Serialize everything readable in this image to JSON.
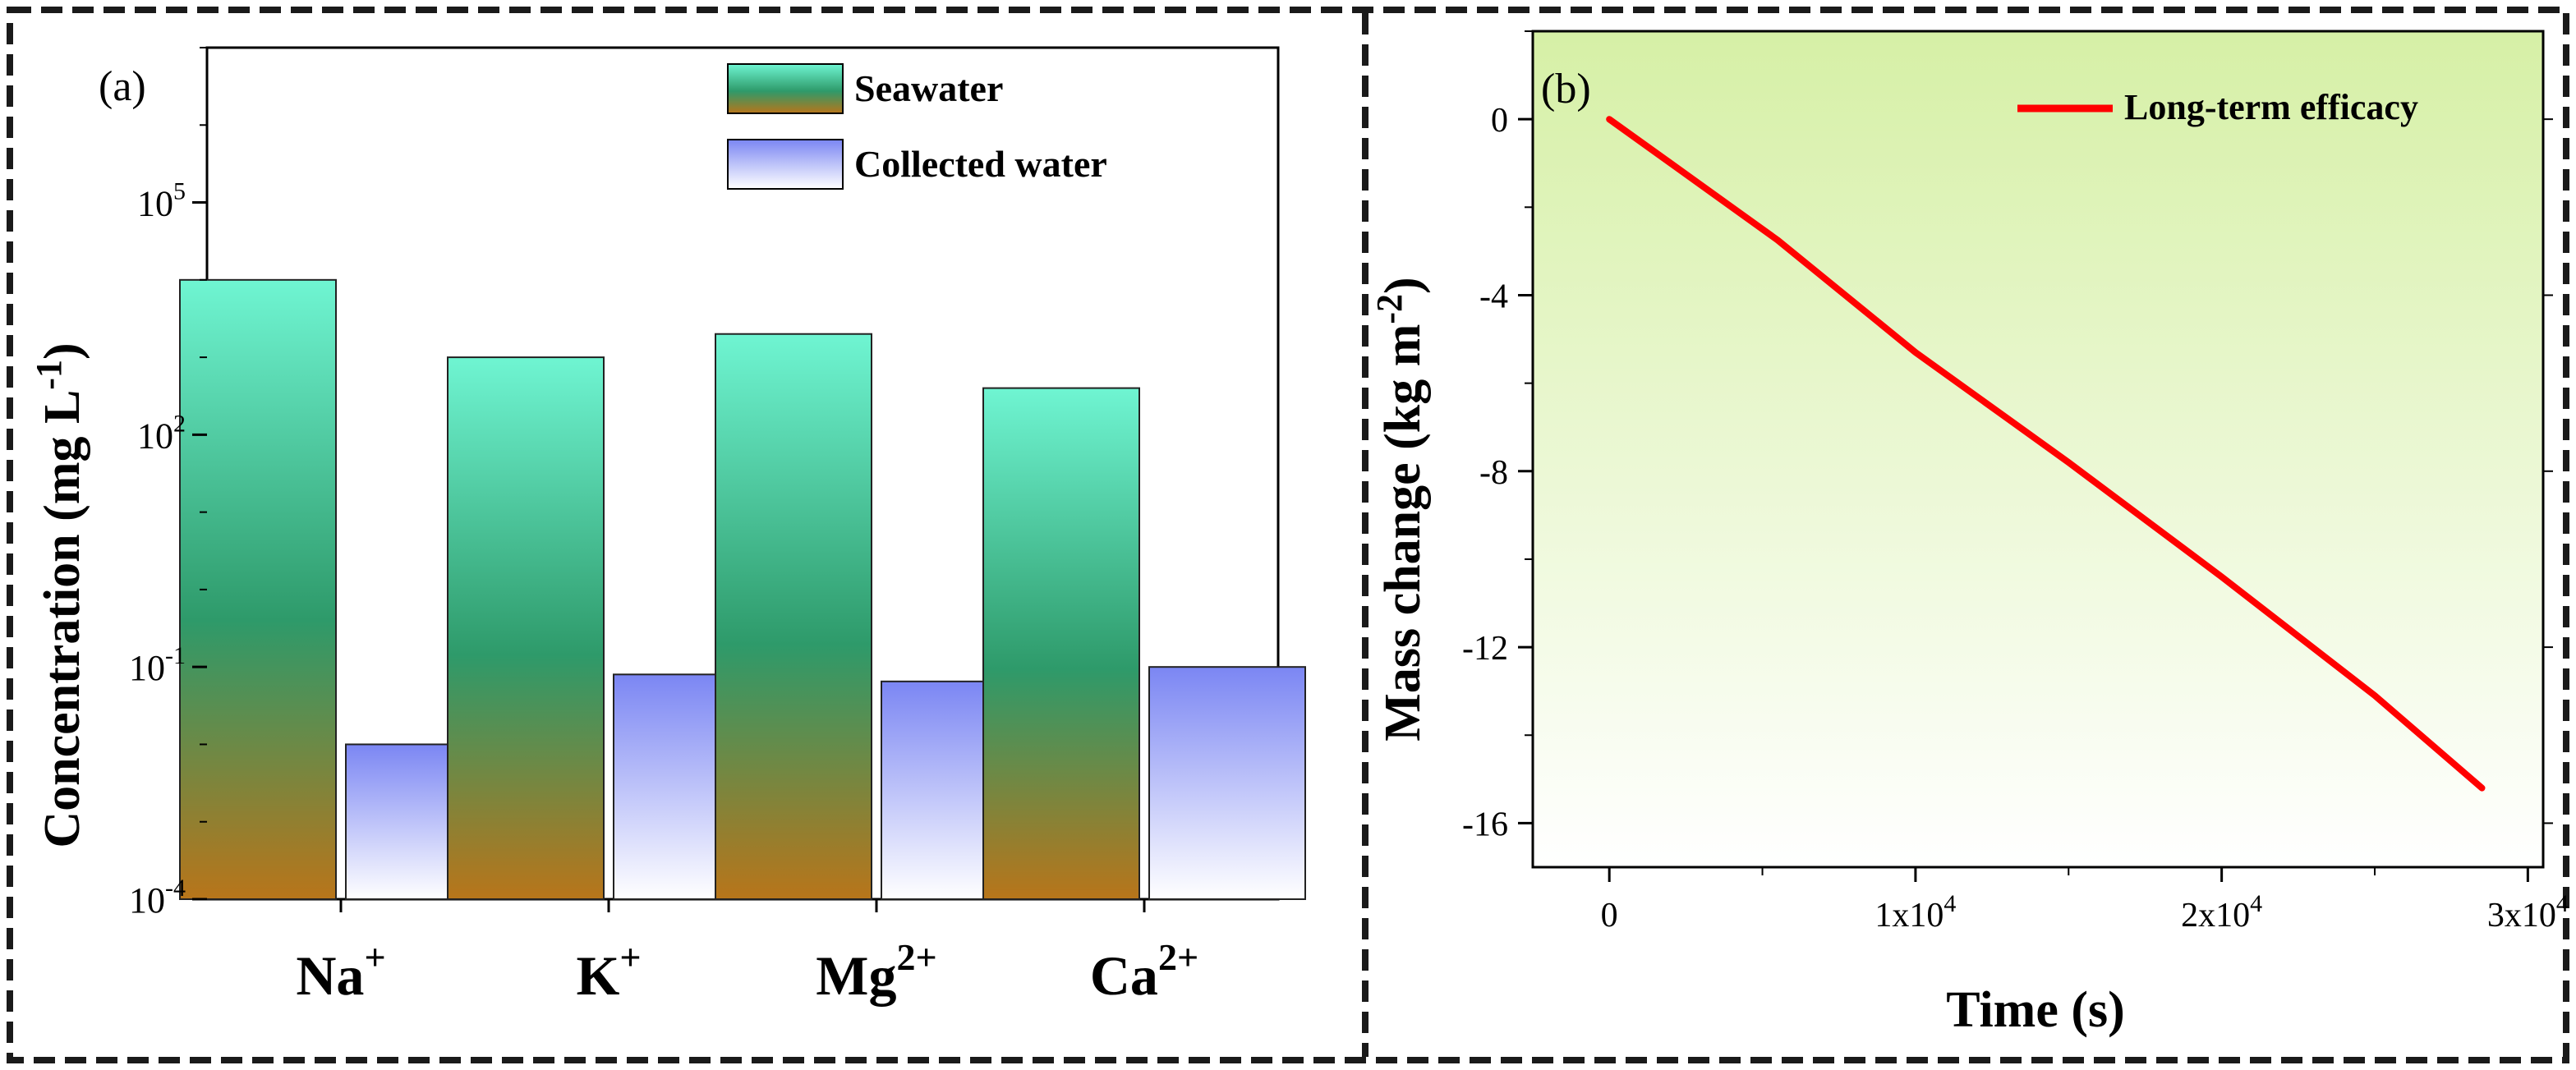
{
  "figure": {
    "panel_a_label": "(a)",
    "panel_b_label": "(b)"
  },
  "colors": {
    "seawater_top": "#6ff5d2",
    "seawater_mid": "#2e9a6a",
    "seawater_bottom": "#b8751a",
    "collected_top": "#7b86f3",
    "collected_bottom": "#ffffff",
    "line": "#ff0000",
    "bg_b_top": "#d6f0a6",
    "bg_b_bottom": "#ffffff",
    "border": "#1a1a1a"
  },
  "chart_data": [
    {
      "type": "bar",
      "panel": "a",
      "categories": [
        "Na",
        "K",
        "Mg",
        "Ca"
      ],
      "category_superscripts": [
        "+",
        "+",
        "2+",
        "2+"
      ],
      "series": [
        {
          "name": "Seawater",
          "values": [
            10000,
            1000,
            2000,
            400
          ]
        },
        {
          "name": "Collected water",
          "values": [
            0.01,
            0.08,
            0.065,
            0.1
          ]
        }
      ],
      "ylabel": "Concentration (mg L",
      "ylabel_sup": "-1",
      "ylabel_close": ")",
      "yscale": "log",
      "ylim": [
        0.0001,
        10000000
      ],
      "yticks": [
        {
          "value": 0.0001,
          "base": "10",
          "exp": "-4"
        },
        {
          "value": 0.1,
          "base": "10",
          "exp": "-1"
        },
        {
          "value": 100,
          "base": "10",
          "exp": "2"
        },
        {
          "value": 100000,
          "base": "10",
          "exp": "5"
        }
      ],
      "legend": {
        "position": "top-right",
        "labels": [
          "Seawater",
          "Collected water"
        ]
      }
    },
    {
      "type": "line",
      "panel": "b",
      "series": [
        {
          "name": "Long-term efficacy",
          "x": [
            0,
            2500,
            5500,
            10000,
            15000,
            20000,
            25000,
            28500
          ],
          "y": [
            0,
            -1.25,
            -2.75,
            -5.3,
            -7.8,
            -10.4,
            -13.1,
            -15.2
          ]
        }
      ],
      "xlabel": "Time (s)",
      "ylabel": "Mass change (kg m",
      "ylabel_sup": "-2",
      "ylabel_close": ")",
      "xlim": [
        -2500,
        30500
      ],
      "ylim": [
        -17,
        2
      ],
      "xticks": [
        {
          "value": 0,
          "label": "0",
          "exp": ""
        },
        {
          "value": 10000,
          "label": "1x10",
          "exp": "4"
        },
        {
          "value": 20000,
          "label": "2x10",
          "exp": "4"
        },
        {
          "value": 30000,
          "label": "3x10",
          "exp": "4"
        }
      ],
      "yticks": [
        {
          "value": 0,
          "label": "0"
        },
        {
          "value": -4,
          "label": "-4"
        },
        {
          "value": -8,
          "label": "-8"
        },
        {
          "value": -12,
          "label": "-12"
        },
        {
          "value": -16,
          "label": "-16"
        }
      ],
      "legend": {
        "position": "top-right",
        "labels": [
          "Long-term efficacy"
        ]
      }
    }
  ]
}
